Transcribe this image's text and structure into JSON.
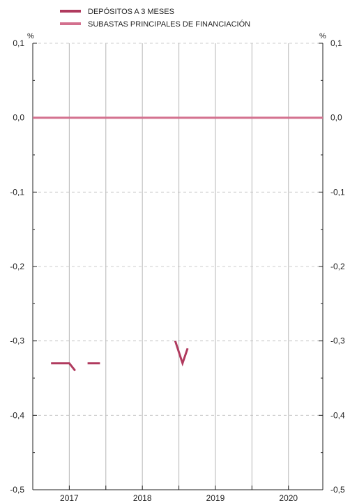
{
  "chart_data": {
    "type": "line",
    "title": "",
    "unit_left": "%",
    "unit_right": "%",
    "ylim": [
      -0.5,
      0.1
    ],
    "yticks": [
      0.1,
      0.0,
      -0.1,
      -0.2,
      -0.3,
      -0.4,
      -0.5
    ],
    "ytick_labels": [
      "0,1",
      "0,0",
      "-0,1",
      "-0,2",
      "-0,3",
      "-0,4",
      "-0,5"
    ],
    "xlim": [
      2017.0,
      2020.97
    ],
    "year_boundaries": [
      2017.0,
      2018.0,
      2019.0,
      2020.0
    ],
    "xtick_labels": [
      {
        "label": "2017",
        "x": 2017.0
      },
      {
        "label": "2018",
        "x": 2018.0
      },
      {
        "label": "2019",
        "x": 2019.0
      },
      {
        "label": "2020",
        "x": 2020.0
      }
    ],
    "series": [
      {
        "name": "DEPÓSITOS A 3 MESES",
        "color": "#b03a5e",
        "segments": [
          [
            [
              2017.25,
              -0.33
            ],
            [
              2017.5,
              -0.33
            ],
            [
              2017.58,
              -0.34
            ]
          ],
          [
            [
              2017.75,
              -0.33
            ],
            [
              2017.92,
              -0.33
            ]
          ],
          [
            [
              2018.95,
              -0.3
            ],
            [
              2019.05,
              -0.33
            ],
            [
              2019.12,
              -0.31
            ]
          ]
        ]
      },
      {
        "name": "SUBASTAS PRINCIPALES DE FINANCIACIÓN",
        "color": "#d3708e",
        "segments": [
          [
            [
              2017.0,
              0.0
            ],
            [
              2020.97,
              0.0
            ]
          ]
        ]
      }
    ],
    "zero_line": 0.0,
    "grid": true,
    "legend_position": "top-left"
  },
  "colors": {
    "series_dark": "#b03a5e",
    "series_light": "#d3708e",
    "grid": "#bdbdbd",
    "axis": "#222222",
    "zero_line": "#222222"
  }
}
